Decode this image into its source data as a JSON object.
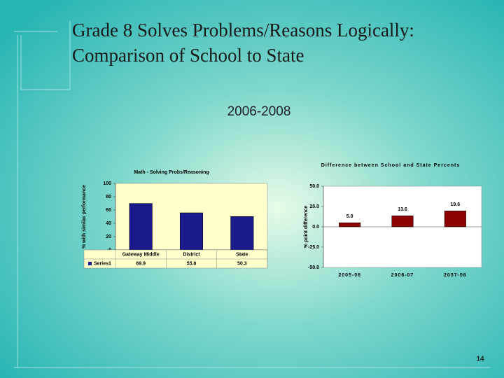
{
  "title": [
    "Grade 8 Solves Problems/Reasons Logically:",
    "Comparison of School to State"
  ],
  "subtitle": "2006-2008",
  "page_number": "14",
  "chart_data": [
    {
      "type": "bar",
      "title": "Math - Solving Probs/Reasoning",
      "y_label": "% with similar performance",
      "categories": [
        "Gateway Middle",
        "District",
        "State"
      ],
      "series": [
        {
          "name": "Series1",
          "color": "#1a1a8c",
          "values": [
            69.9,
            55.8,
            50.3
          ]
        }
      ],
      "ylim": [
        0,
        100
      ],
      "yticks": [
        0,
        20,
        40,
        60,
        80,
        100
      ],
      "data_table": true
    },
    {
      "type": "bar",
      "title": "Difference between School and State Percents",
      "y_label": "% point difference",
      "categories": [
        "2005-06",
        "2006-07",
        "2007-08"
      ],
      "series": [
        {
          "color": "#8b0000",
          "values": [
            5.0,
            13.6,
            19.6
          ],
          "value_labels": [
            "5.0",
            "13.6",
            "19.6"
          ]
        }
      ],
      "ylim": [
        -50,
        50
      ],
      "yticks": [
        {
          "value": -50,
          "label": "-50.0"
        },
        {
          "value": -25,
          "label": "-25.0"
        },
        {
          "value": 0,
          "label": "0.0"
        },
        {
          "value": 25,
          "label": "25.0"
        },
        {
          "value": 50,
          "label": "50.0"
        }
      ]
    }
  ]
}
